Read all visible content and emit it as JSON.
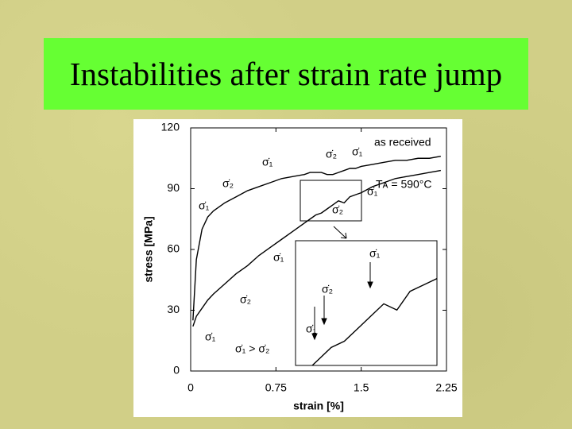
{
  "slide_title": "Instabilities after strain rate jump",
  "chart_data": {
    "type": "line",
    "xlabel": "strain [%]",
    "ylabel": "stress [MPa]",
    "x": [
      0.02,
      0.05,
      0.1,
      0.15,
      0.2,
      0.3,
      0.4,
      0.5,
      0.6,
      0.7,
      0.8,
      0.9,
      1.0,
      1.05,
      1.1,
      1.15,
      1.2,
      1.25,
      1.3,
      1.35,
      1.4,
      1.45,
      1.5,
      1.6,
      1.7,
      1.8,
      1.9,
      2.0,
      2.1,
      2.2
    ],
    "series": [
      {
        "name": "as received",
        "color": "#000000",
        "values": [
          25,
          55,
          70,
          76,
          79,
          83,
          86,
          89,
          91,
          93,
          95,
          96,
          97,
          98,
          98,
          98,
          97,
          97,
          98,
          99,
          100,
          100,
          101,
          102,
          103,
          104,
          104,
          105,
          105,
          106
        ]
      },
      {
        "name": "Tᴀ = 590°C",
        "color": "#000000",
        "values": [
          22,
          27,
          31,
          35,
          38,
          43,
          48,
          52,
          57,
          61,
          65,
          69,
          73,
          75,
          77,
          78,
          80,
          82,
          84,
          83,
          86,
          87,
          88,
          91,
          93,
          95,
          96,
          97,
          98,
          99
        ]
      }
    ],
    "xlim": [
      0,
      2.25
    ],
    "ylim": [
      0,
      120
    ],
    "xticks": [
      0,
      0.75,
      1.5,
      2.25
    ],
    "yticks": [
      0,
      30,
      60,
      90,
      120
    ],
    "annotations": [
      "σ̇₁",
      "σ̇₂",
      "σ̇₁",
      "σ̇₂",
      "σ̇₁",
      "σ̇₁",
      "σ̇₂",
      "σ̇₁",
      "σ̇₂",
      "σ̇₁",
      "σ̇₁ > σ̇₂",
      "σ̇₁",
      "σ̇₂",
      "σ̇₁"
    ]
  }
}
